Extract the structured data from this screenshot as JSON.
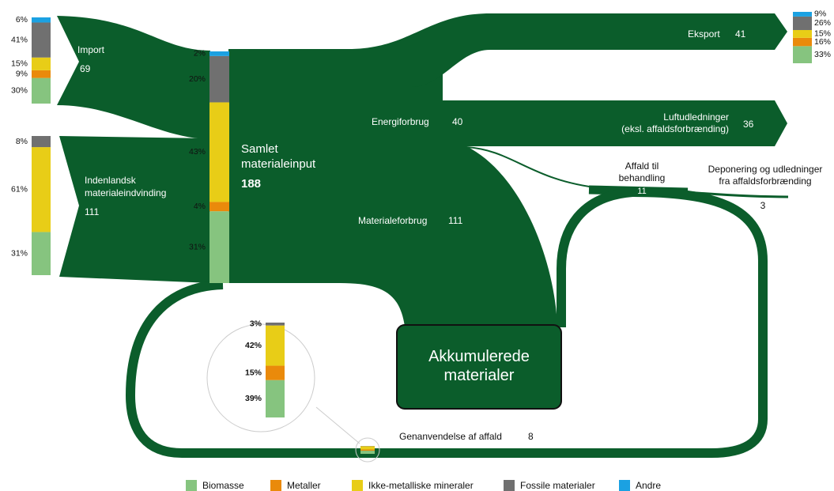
{
  "nodes": {
    "import": {
      "label": [
        "Import"
      ],
      "value": 69,
      "composition": {
        "values": [
          30,
          9,
          15,
          41,
          6
        ],
        "value_labels": [
          "30%",
          "9%",
          "15%",
          "41%",
          "6%"
        ],
        "colors": [
          "#86c47f",
          "#ea8a0b",
          "#e8cd17",
          "#707070",
          "#1ba1e2"
        ]
      }
    },
    "domestic": {
      "label": [
        "Indenlandsk",
        "materialeindvinding"
      ],
      "value": 111,
      "composition": {
        "values": [
          31,
          61,
          8
        ],
        "value_labels": [
          "31%",
          "61%",
          "8%"
        ],
        "colors": [
          "#86c47f",
          "#e8cd17",
          "#707070"
        ]
      }
    },
    "input": {
      "label": [
        "Samlet",
        "materialeinput"
      ],
      "value": 188,
      "composition": {
        "values": [
          31,
          4,
          43,
          20,
          2
        ],
        "value_labels": [
          "31%",
          "4%",
          "43%",
          "20%",
          "2%"
        ],
        "colors": [
          "#86c47f",
          "#ea8a0b",
          "#e8cd17",
          "#707070",
          "#1ba1e2"
        ]
      }
    },
    "export": {
      "label": [
        "Eksport"
      ],
      "value": 41,
      "composition": {
        "values": [
          33,
          16,
          15,
          26,
          9
        ],
        "value_labels": [
          "33%",
          "16%",
          "15%",
          "26%",
          "9%"
        ],
        "colors": [
          "#86c47f",
          "#ea8a0b",
          "#e8cd17",
          "#707070",
          "#1ba1e2"
        ]
      }
    },
    "energy": {
      "label": [
        "Energiforbrug"
      ],
      "value": 40
    },
    "air": {
      "label": [
        "Luftudledninger",
        "(eksl. affaldsforbrænding)"
      ],
      "value": 36
    },
    "waste": {
      "label": [
        "Affald til",
        "behandling"
      ],
      "value": 11
    },
    "landfill": {
      "label": [
        "Deponering og udledninger",
        "fra affaldsforbrænding"
      ],
      "value": 3
    },
    "material": {
      "label": [
        "Materialeforbrug"
      ],
      "value": 111
    },
    "stock": {
      "label": [
        "Akkumulerede",
        "materialer"
      ]
    },
    "recycling": {
      "label": [
        "Genanvendelse af affald"
      ],
      "value": 8,
      "composition": {
        "values": [
          39,
          15,
          42,
          3
        ],
        "value_labels": [
          "39%",
          "15%",
          "42%",
          "3%"
        ],
        "colors": [
          "#86c47f",
          "#ea8a0b",
          "#e8cd17",
          "#707070"
        ]
      }
    }
  },
  "legend": [
    {
      "label": "Biomasse",
      "color": "#86c47f"
    },
    {
      "label": "Metaller",
      "color": "#ea8a0b"
    },
    {
      "label": "Ikke-metalliske mineraler",
      "color": "#e8cd17"
    },
    {
      "label": "Fossile materialer",
      "color": "#707070"
    },
    {
      "label": "Andre",
      "color": "#1ba1e2"
    }
  ]
}
